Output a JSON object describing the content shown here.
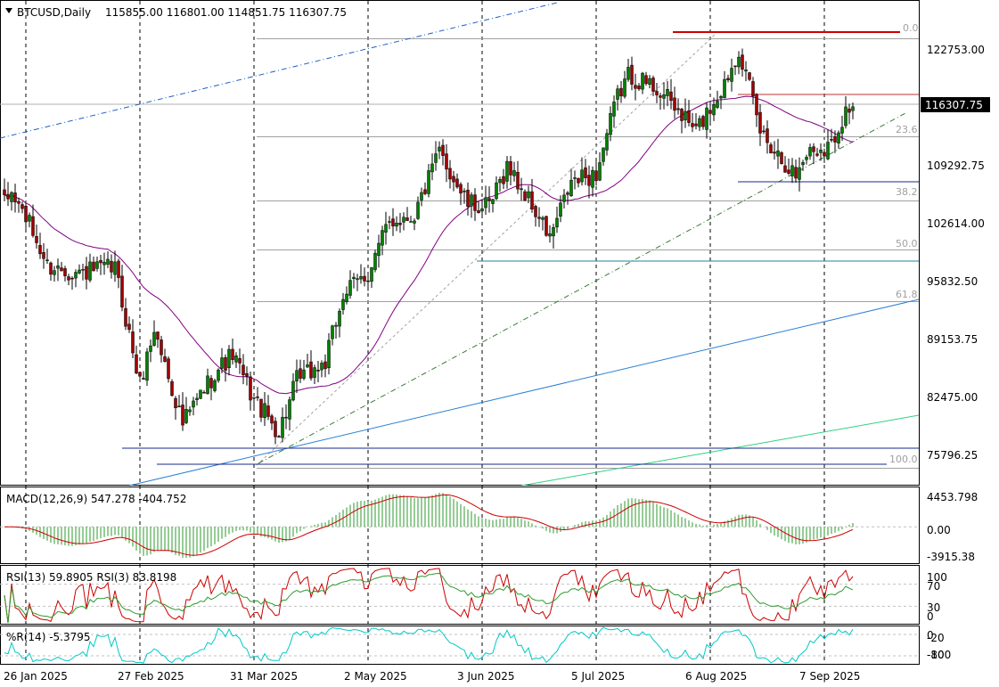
{
  "header": {
    "symbol": "BTCUSD,Daily",
    "ohlc": "115855.00 116801.00 114851.75 116307.75"
  },
  "current_price": "116307.75",
  "price_axis": [
    "122753.00",
    "109292.75",
    "102614.00",
    "95832.50",
    "89153.75",
    "82475.00",
    "75796.25"
  ],
  "fib_levels": [
    "0.0",
    "23.6",
    "38.2",
    "50.0",
    "61.8",
    "100.0"
  ],
  "date_axis": [
    "26 Jan 2025",
    "27 Feb 2025",
    "31 Mar 2025",
    "2 May 2025",
    "3 Jun 2025",
    "5 Jul 2025",
    "6 Aug 2025",
    "7 Sep 2025"
  ],
  "indicators": {
    "macd": {
      "title": "MACD(12,26,9) 547.278 -404.752",
      "axis": [
        "4453.798",
        "0.00",
        "-3915.38"
      ]
    },
    "rsi": {
      "title": "RSI(13) 59.8905  RSI(3) 83.8198",
      "axis": [
        "100",
        "70",
        "30",
        "0"
      ]
    },
    "wpr": {
      "title": "%R(14) -5.3795",
      "axis": [
        "0",
        "-20",
        "-80",
        "-100"
      ]
    }
  },
  "colors": {
    "bull": "#008000",
    "bear": "#a00000",
    "ma": "#800080",
    "macd_hist": "#2e9a2e",
    "macd_signal": "#cc0000",
    "rsi_fast": "#cc0000",
    "rsi_slow": "#2e9a2e",
    "wpr": "#00c8c8",
    "fib": "#a0a0a0"
  },
  "chart_data": {
    "type": "candlestick",
    "title": "BTCUSD,Daily",
    "ylim": [
      72500,
      128500
    ],
    "anchors": [
      [
        "2025-01-20",
        105000
      ],
      [
        "2025-01-22",
        106200
      ],
      [
        "2025-01-26",
        103500
      ],
      [
        "2025-02-01",
        97800
      ],
      [
        "2025-02-10",
        97000
      ],
      [
        "2025-02-20",
        97600
      ],
      [
        "2025-02-27",
        84000
      ],
      [
        "2025-03-03",
        90500
      ],
      [
        "2025-03-11",
        79500
      ],
      [
        "2025-03-20",
        85500
      ],
      [
        "2025-03-25",
        87500
      ],
      [
        "2025-03-31",
        82300
      ],
      [
        "2025-04-07",
        78500
      ],
      [
        "2025-04-12",
        84500
      ],
      [
        "2025-04-20",
        86500
      ],
      [
        "2025-04-25",
        94500
      ],
      [
        "2025-05-02",
        97000
      ],
      [
        "2025-05-08",
        103000
      ],
      [
        "2025-05-15",
        103800
      ],
      [
        "2025-05-22",
        111000
      ],
      [
        "2025-05-30",
        105000
      ],
      [
        "2025-06-05",
        104500
      ],
      [
        "2025-06-10",
        109500
      ],
      [
        "2025-06-17",
        104800
      ],
      [
        "2025-06-22",
        101000
      ],
      [
        "2025-06-28",
        107500
      ],
      [
        "2025-07-05",
        108500
      ],
      [
        "2025-07-11",
        117500
      ],
      [
        "2025-07-14",
        120000
      ],
      [
        "2025-07-22",
        118500
      ],
      [
        "2025-08-02",
        113500
      ],
      [
        "2025-08-10",
        119000
      ],
      [
        "2025-08-14",
        123200
      ],
      [
        "2025-08-20",
        113500
      ],
      [
        "2025-08-30",
        108300
      ],
      [
        "2025-09-02",
        111000
      ],
      [
        "2025-09-09",
        112000
      ],
      [
        "2025-09-13",
        116000
      ],
      [
        "2025-09-15",
        116307.75
      ]
    ],
    "last_bar": {
      "open": 115855.0,
      "high": 116801.0,
      "low": 114851.75,
      "close": 116307.75
    },
    "moving_average": {
      "period": 30
    },
    "x_ticks": [
      "26 Jan 2025",
      "27 Feb 2025",
      "31 Mar 2025",
      "2 May 2025",
      "3 Jun 2025",
      "5 Jul 2025",
      "6 Aug 2025",
      "7 Sep 2025"
    ],
    "y_ticks": [
      122753.0,
      109292.75,
      102614.0,
      95832.5,
      89153.75,
      82475.0,
      75796.25
    ],
    "fibonacci": {
      "0.0": 124300,
      "23.6": 112900,
      "38.2": 105400,
      "50.0": 99700,
      "61.8": 93700,
      "100.0": 74400
    },
    "macd": {
      "params": "12,26,9",
      "macd": 547.278,
      "signal": -404.752,
      "ylim": [
        -4500,
        4900
      ]
    },
    "rsi": {
      "rsi13": 59.8905,
      "rsi3": 83.8198,
      "levels": [
        70,
        30
      ]
    },
    "williams_r": {
      "period": 14,
      "value": -5.3795,
      "levels": [
        -20,
        -80
      ]
    },
    "grid": true
  }
}
